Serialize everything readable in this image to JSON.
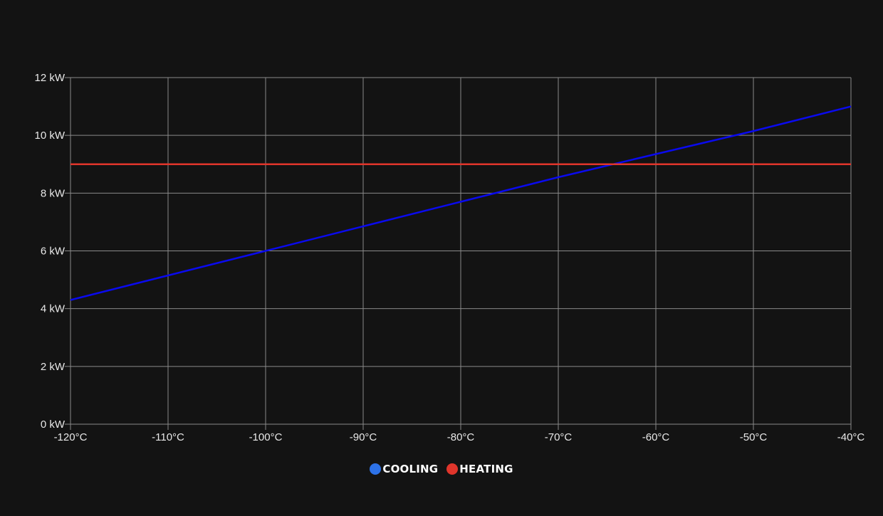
{
  "chart_data": {
    "type": "line",
    "x": [
      -120,
      -110,
      -100,
      -90,
      -80,
      -70,
      -60,
      -50,
      -40
    ],
    "xlim": [
      -120,
      -40
    ],
    "ylim": [
      0,
      12
    ],
    "x_ticks": [
      "-120°C",
      "-110°C",
      "-100°C",
      "-90°C",
      "-80°C",
      "-70°C",
      "-60°C",
      "-50°C",
      "-40°C"
    ],
    "y_ticks": [
      "0 kW",
      "2 kW",
      "4 kW",
      "6 kW",
      "8 kW",
      "10 kW",
      "12 kW"
    ],
    "y_tick_values": [
      0,
      2,
      4,
      6,
      8,
      10,
      12
    ],
    "grid": true,
    "legend_position": "bottom-center",
    "series": [
      {
        "name": "COOLING",
        "values": [
          4.3,
          5.15,
          6.0,
          6.85,
          7.7,
          8.55,
          9.35,
          10.15,
          11.0
        ],
        "line_color": "#0a0aee",
        "legend_color": "#2d72e8"
      },
      {
        "name": "HEATING",
        "values": [
          9,
          9,
          9,
          9,
          9,
          9,
          9,
          9,
          9
        ],
        "line_color": "#e0352b",
        "legend_color": "#e0352b"
      }
    ]
  }
}
